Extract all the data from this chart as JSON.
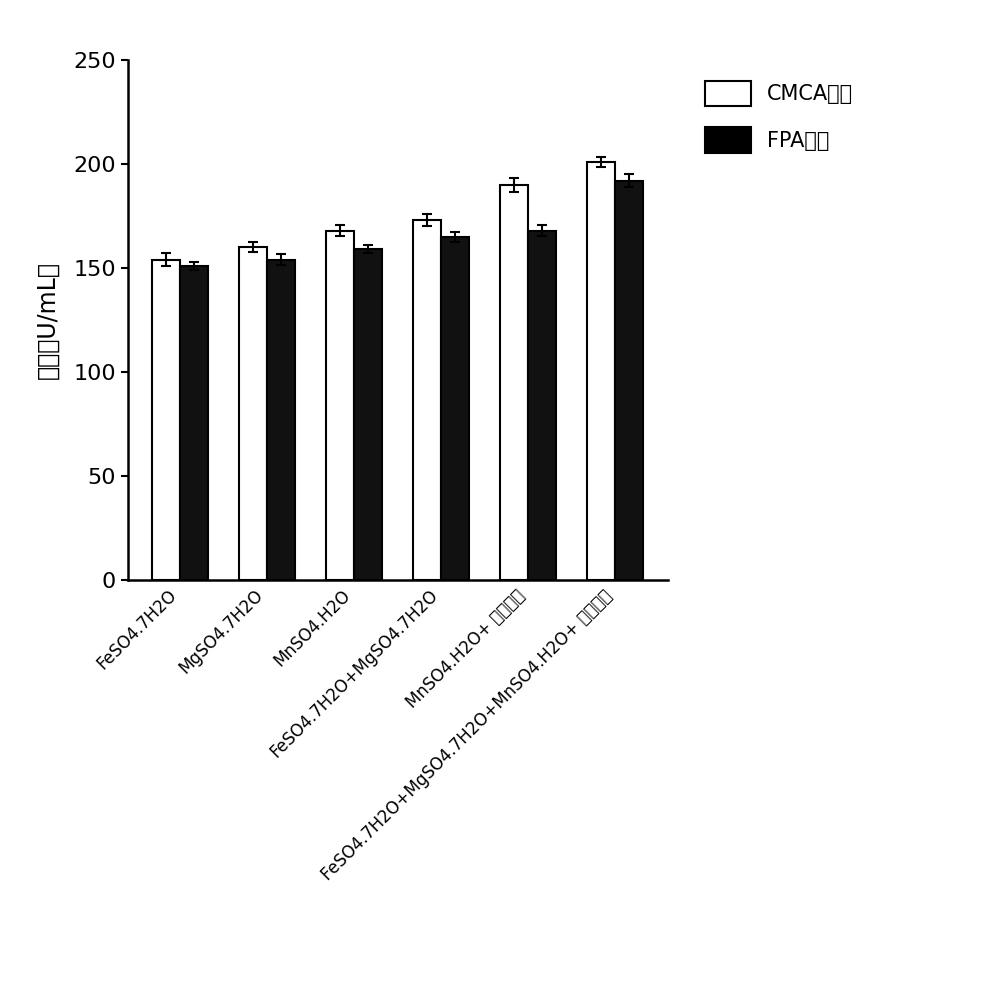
{
  "cmca_values": [
    154,
    160,
    168,
    173,
    190,
    201
  ],
  "cmca_errors": [
    3.0,
    2.5,
    2.5,
    3.0,
    3.5,
    2.5
  ],
  "fpa_values": [
    151,
    154,
    159,
    165,
    168,
    192
  ],
  "fpa_errors": [
    2.0,
    2.5,
    2.0,
    2.5,
    2.5,
    3.0
  ],
  "ylim": [
    0,
    250
  ],
  "yticks": [
    0,
    50,
    100,
    150,
    200,
    250
  ],
  "bar_width": 0.32,
  "cmca_color": "#ffffff",
  "cmca_edgecolor": "#000000",
  "fpa_color": "#111111",
  "fpa_edgecolor": "#000000"
}
